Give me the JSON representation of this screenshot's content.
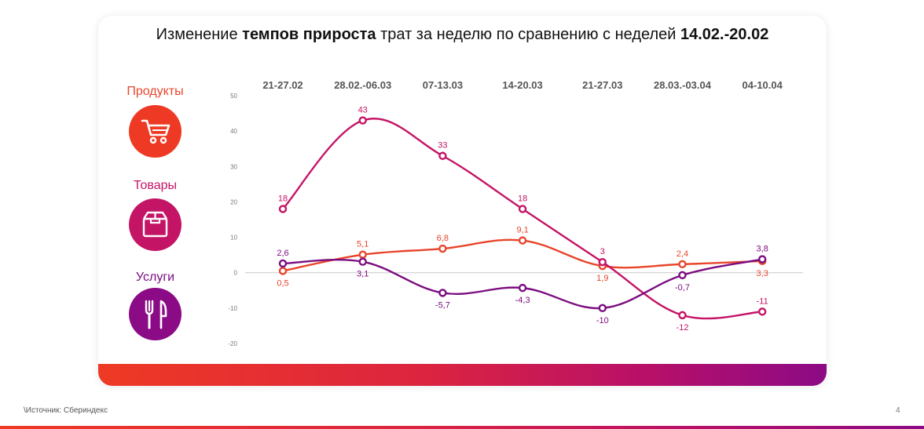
{
  "title": {
    "part1": "Изменение ",
    "bold1": "темпов прироста",
    "part2": " трат за неделю по сравнению с неделей ",
    "bold2": "14.02.-20.02"
  },
  "categories_legend": [
    {
      "label": "Продукты",
      "icon": "shopping-cart-icon",
      "color": "#ee3a24"
    },
    {
      "label": "Товары",
      "icon": "box-icon",
      "color": "#c41466"
    },
    {
      "label": "Услуги",
      "icon": "fork-knife-icon",
      "color": "#8b0a85"
    }
  ],
  "chart_data": {
    "type": "line",
    "x": [
      "21-27.02",
      "28.02.-06.03",
      "07-13.03",
      "14-20.03",
      "21-27.03",
      "28.03.-03.04",
      "04-10.04"
    ],
    "ylim": [
      -20,
      50
    ],
    "yticks": [
      "50",
      "40",
      "30",
      "20",
      "10",
      "0",
      "-10",
      "-20"
    ],
    "series": [
      {
        "key": "products",
        "color": "#e8452c",
        "values": [
          0.5,
          5.1,
          6.8,
          9.1,
          1.9,
          2.4,
          3.3
        ],
        "labels": [
          "0,5",
          "5,1",
          "6,8",
          "9,1",
          "1,9",
          "2,4",
          "3,3"
        ],
        "label_pos": [
          "below",
          "above",
          "above",
          "above",
          "below",
          "above",
          "below"
        ]
      },
      {
        "key": "goods",
        "color": "#c41466",
        "values": [
          18,
          43,
          33,
          18,
          3,
          -12,
          -11
        ],
        "labels": [
          "18",
          "43",
          "33",
          "18",
          "3",
          "-12",
          "-11"
        ],
        "label_pos": [
          "above",
          "above",
          "above",
          "above",
          "above",
          "below",
          "above"
        ]
      },
      {
        "key": "services",
        "color": "#7b0d80",
        "values": [
          2.6,
          3.1,
          -5.7,
          -4.3,
          -10,
          -0.7,
          3.8
        ],
        "labels": [
          "2,6",
          "3,1",
          "-5,7",
          "-4,3",
          "-10",
          "-0,7",
          "3,8"
        ],
        "label_pos": [
          "above",
          "below",
          "below",
          "below",
          "below",
          "below",
          "above"
        ]
      }
    ]
  },
  "footer": {
    "source": "\\Источник: Сбериндекс",
    "page": "4"
  }
}
